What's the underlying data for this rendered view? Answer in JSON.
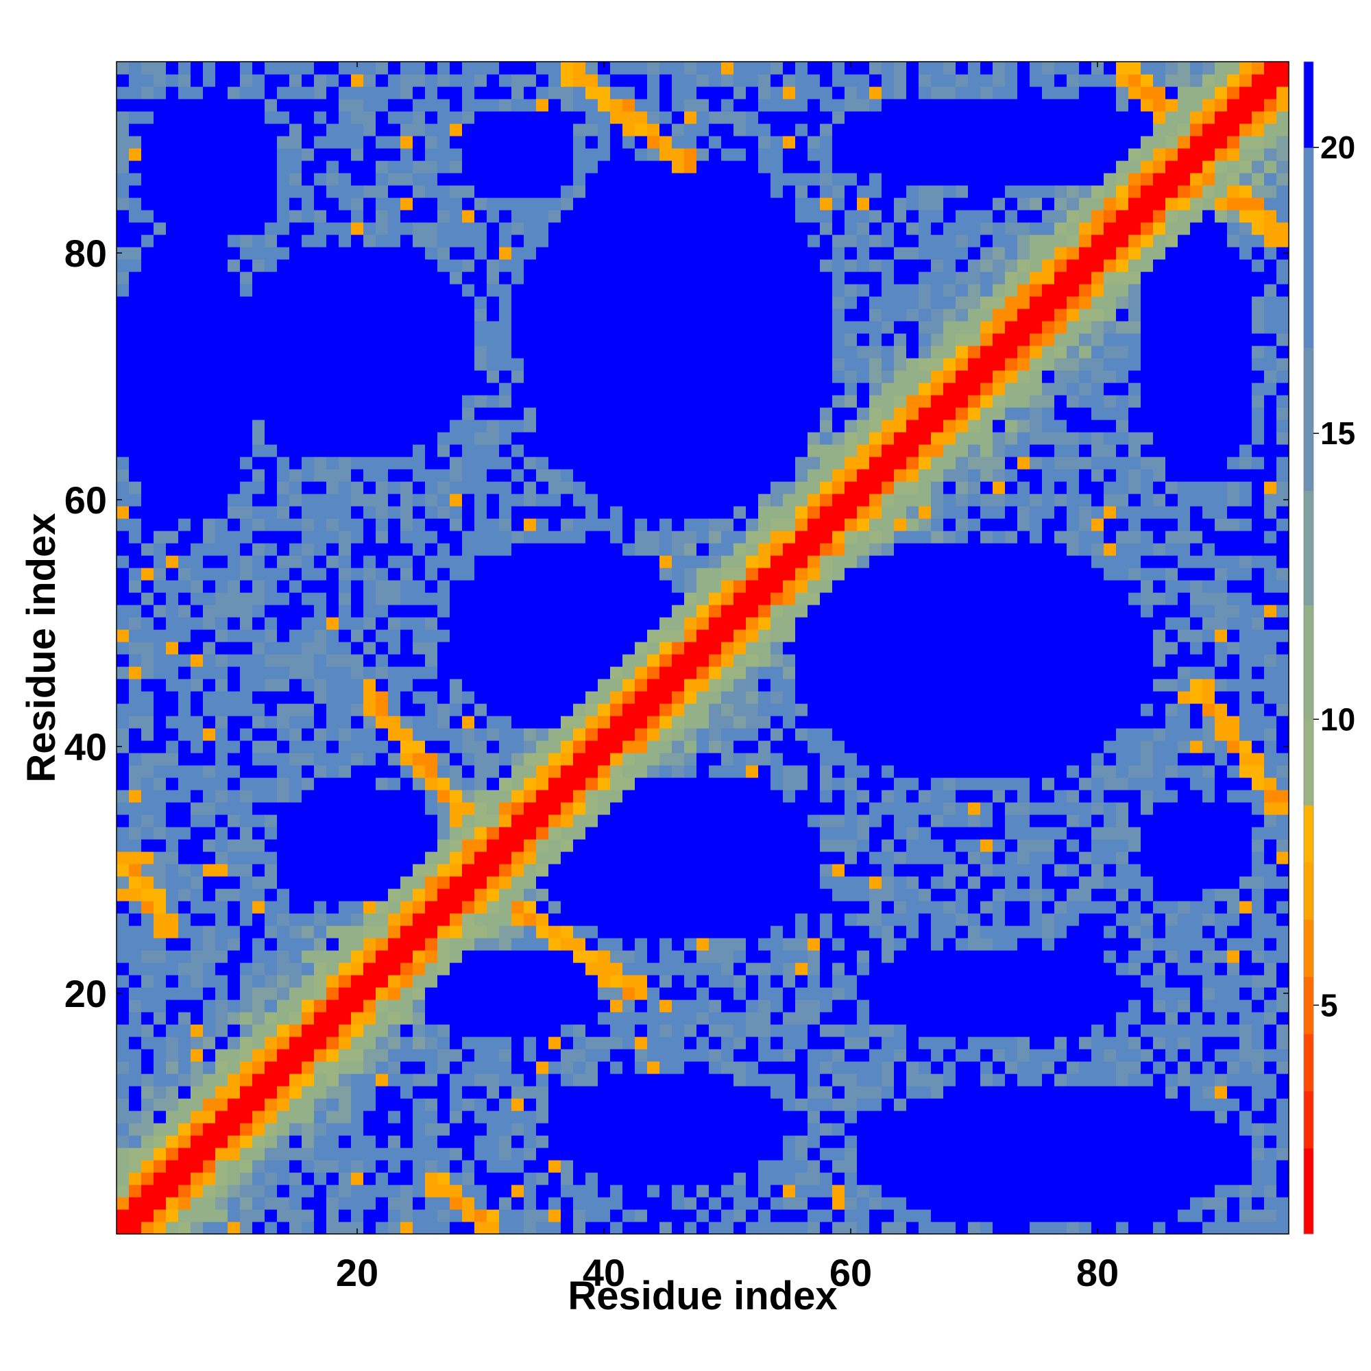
{
  "chart_data": {
    "type": "heatmap",
    "title": "",
    "xlabel": "Residue index",
    "ylabel": "Residue index",
    "xlim": [
      0.5,
      95.5
    ],
    "ylim": [
      0.5,
      95.5
    ],
    "n_residues": 95,
    "x_ticks": [
      20,
      40,
      60,
      80
    ],
    "y_ticks": [
      20,
      40,
      60,
      80
    ],
    "colorbar": {
      "ticks": [
        5,
        10,
        15,
        20
      ],
      "range": [
        1,
        21.5
      ],
      "levels": [
        {
          "max": 2.5,
          "color": "#ff0000"
        },
        {
          "max": 3.5,
          "color": "#ff2a00"
        },
        {
          "max": 4.5,
          "color": "#ff4a00"
        },
        {
          "max": 5.5,
          "color": "#ff6d00"
        },
        {
          "max": 6.5,
          "color": "#ff8c00"
        },
        {
          "max": 7.5,
          "color": "#ffa500"
        },
        {
          "max": 8.5,
          "color": "#ffb200"
        },
        {
          "max": 10.0,
          "color": "#9bb481"
        },
        {
          "max": 12.0,
          "color": "#93b088"
        },
        {
          "max": 14.0,
          "color": "#7f9fa2"
        },
        {
          "max": 16.5,
          "color": "#6b91b5"
        },
        {
          "max": 20.0,
          "color": "#5a88c2"
        },
        {
          "max": 99.0,
          "color": "#0000ff"
        }
      ]
    },
    "description_of_values": "Pairwise residue-residue distance matrix (symmetric, diagonal = contact)."
  }
}
